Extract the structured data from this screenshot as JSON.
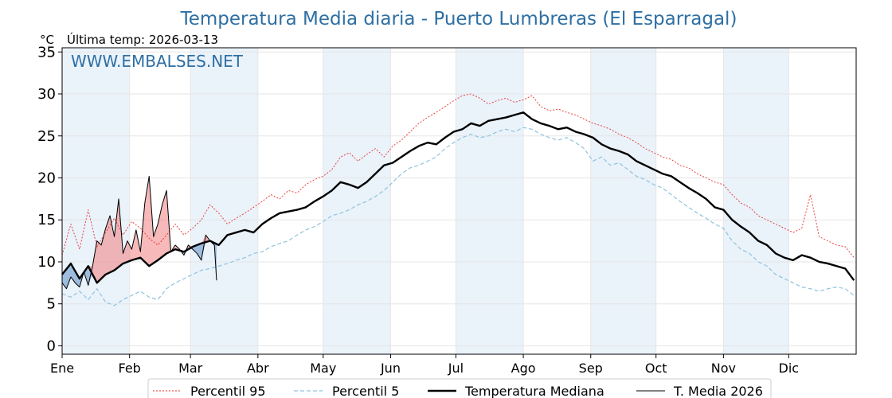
{
  "title": "Temperatura Media diaria - Puerto Lumbreras (El Esparragal)",
  "unit_label": "°C",
  "last_temp_label": "Última temp: 2026-03-13",
  "watermark": "WWW.EMBALSES.NET",
  "colors": {
    "title": "#2e6fa3",
    "p95": "#e8302a",
    "p5": "#8fc3dc",
    "median": "#000000",
    "current": "#000000",
    "fill_above": "#f08080",
    "fill_below": "#5f8fc7",
    "band": "#eaf2fa"
  },
  "chart_data": {
    "type": "line",
    "title": "Temperatura Media diaria - Puerto Lumbreras (El Esparragal)",
    "ylabel": "°C",
    "ylim": [
      -1,
      35.5
    ],
    "xlim": [
      1,
      366
    ],
    "yticks": [
      0,
      5,
      10,
      15,
      20,
      25,
      30,
      35
    ],
    "months": [
      {
        "label": "Ene",
        "day": 1
      },
      {
        "label": "Feb",
        "day": 32
      },
      {
        "label": "Mar",
        "day": 60
      },
      {
        "label": "Abr",
        "day": 91
      },
      {
        "label": "May",
        "day": 121
      },
      {
        "label": "Jun",
        "day": 152
      },
      {
        "label": "Jul",
        "day": 182
      },
      {
        "label": "Ago",
        "day": 213
      },
      {
        "label": "Sep",
        "day": 244
      },
      {
        "label": "Oct",
        "day": 274
      },
      {
        "label": "Nov",
        "day": 305
      },
      {
        "label": "Dic",
        "day": 335
      }
    ],
    "shaded_months": [
      [
        1,
        32
      ],
      [
        60,
        91
      ],
      [
        121,
        152
      ],
      [
        182,
        213
      ],
      [
        244,
        274
      ],
      [
        305,
        335
      ]
    ],
    "grid": true,
    "legend_position": "bottom",
    "series": [
      {
        "key": "p95",
        "name": "Percentil 95",
        "x": [
          1,
          5,
          9,
          13,
          17,
          21,
          25,
          29,
          33,
          37,
          41,
          45,
          49,
          53,
          57,
          61,
          65,
          69,
          73,
          77,
          81,
          85,
          89,
          93,
          97,
          101,
          105,
          109,
          113,
          117,
          121,
          125,
          129,
          133,
          137,
          141,
          145,
          149,
          153,
          157,
          161,
          165,
          169,
          173,
          177,
          181,
          185,
          189,
          193,
          197,
          201,
          205,
          209,
          213,
          217,
          221,
          225,
          229,
          233,
          237,
          241,
          245,
          249,
          253,
          257,
          261,
          265,
          269,
          273,
          277,
          281,
          285,
          289,
          293,
          297,
          301,
          305,
          309,
          313,
          317,
          321,
          325,
          329,
          333,
          337,
          341,
          345,
          349,
          353,
          357,
          361,
          365
        ],
        "y": [
          10.8,
          14.5,
          11.5,
          16.2,
          11.8,
          13.5,
          15.2,
          13.2,
          14.8,
          14.0,
          12.8,
          12.0,
          13.2,
          14.5,
          13.2,
          14.0,
          15.0,
          16.8,
          15.8,
          14.5,
          15.2,
          15.8,
          16.5,
          17.2,
          18.0,
          17.5,
          18.5,
          18.2,
          19.2,
          19.8,
          20.2,
          21.0,
          22.5,
          23.0,
          22.0,
          22.8,
          23.5,
          22.5,
          23.8,
          24.5,
          25.5,
          26.5,
          27.2,
          27.8,
          28.5,
          29.2,
          29.8,
          30.0,
          29.5,
          28.8,
          29.2,
          29.5,
          29.0,
          29.3,
          29.8,
          28.5,
          28.0,
          28.2,
          27.8,
          27.5,
          27.0,
          26.5,
          26.2,
          25.8,
          25.2,
          24.8,
          24.2,
          23.5,
          23.0,
          22.5,
          22.2,
          21.5,
          21.2,
          20.5,
          20.0,
          19.5,
          19.2,
          18.0,
          17.0,
          16.5,
          15.5,
          15.0,
          14.5,
          14.0,
          13.5,
          14.0,
          18.0,
          13.0,
          12.5,
          12.0,
          11.8,
          10.5
        ]
      },
      {
        "key": "p5",
        "name": "Percentil 5",
        "x": [
          1,
          5,
          9,
          13,
          17,
          21,
          25,
          29,
          33,
          37,
          41,
          45,
          49,
          53,
          57,
          61,
          65,
          69,
          73,
          77,
          81,
          85,
          89,
          93,
          97,
          101,
          105,
          109,
          113,
          117,
          121,
          125,
          129,
          133,
          137,
          141,
          145,
          149,
          153,
          157,
          161,
          165,
          169,
          173,
          177,
          181,
          185,
          189,
          193,
          197,
          201,
          205,
          209,
          213,
          217,
          221,
          225,
          229,
          233,
          237,
          241,
          245,
          249,
          253,
          257,
          261,
          265,
          269,
          273,
          277,
          281,
          285,
          289,
          293,
          297,
          301,
          305,
          309,
          313,
          317,
          321,
          325,
          329,
          333,
          337,
          341,
          345,
          349,
          353,
          357,
          361,
          365
        ],
        "y": [
          6.2,
          5.8,
          6.5,
          5.5,
          6.8,
          5.2,
          4.8,
          5.5,
          6.0,
          6.5,
          5.8,
          5.5,
          6.8,
          7.5,
          8.0,
          8.5,
          9.0,
          9.2,
          9.5,
          9.8,
          10.2,
          10.5,
          11.0,
          11.2,
          11.8,
          12.2,
          12.5,
          13.2,
          13.8,
          14.2,
          14.8,
          15.5,
          15.8,
          16.2,
          16.8,
          17.2,
          17.8,
          18.5,
          19.5,
          20.5,
          21.2,
          21.5,
          22.0,
          22.5,
          23.5,
          24.2,
          24.8,
          25.2,
          24.8,
          25.0,
          25.5,
          25.8,
          25.5,
          26.0,
          25.8,
          25.2,
          24.8,
          24.5,
          24.8,
          24.2,
          23.5,
          22.0,
          22.5,
          21.5,
          21.8,
          21.0,
          20.2,
          19.8,
          19.2,
          18.8,
          18.0,
          17.2,
          16.5,
          15.8,
          15.2,
          14.5,
          14.0,
          12.5,
          11.5,
          11.0,
          10.0,
          9.5,
          8.5,
          8.0,
          7.5,
          7.0,
          6.8,
          6.5,
          6.8,
          7.0,
          6.8,
          6.0
        ]
      },
      {
        "key": "median",
        "name": "Temperatura Mediana",
        "x": [
          1,
          5,
          9,
          13,
          17,
          21,
          25,
          29,
          33,
          37,
          41,
          45,
          49,
          53,
          57,
          61,
          65,
          69,
          73,
          77,
          81,
          85,
          89,
          93,
          97,
          101,
          105,
          109,
          113,
          117,
          121,
          125,
          129,
          133,
          137,
          141,
          145,
          149,
          153,
          157,
          161,
          165,
          169,
          173,
          177,
          181,
          185,
          189,
          193,
          197,
          201,
          205,
          209,
          213,
          217,
          221,
          225,
          229,
          233,
          237,
          241,
          245,
          249,
          253,
          257,
          261,
          265,
          269,
          273,
          277,
          281,
          285,
          289,
          293,
          297,
          301,
          305,
          309,
          313,
          317,
          321,
          325,
          329,
          333,
          337,
          341,
          345,
          349,
          353,
          357,
          361,
          365
        ],
        "y": [
          8.5,
          9.8,
          8.0,
          9.5,
          7.5,
          8.5,
          9.0,
          9.8,
          10.2,
          10.5,
          9.5,
          10.2,
          11.0,
          11.5,
          11.2,
          11.8,
          12.2,
          12.5,
          12.0,
          13.2,
          13.5,
          13.8,
          13.5,
          14.5,
          15.2,
          15.8,
          16.0,
          16.2,
          16.5,
          17.2,
          17.8,
          18.5,
          19.5,
          19.2,
          18.8,
          19.5,
          20.5,
          21.5,
          21.8,
          22.5,
          23.2,
          23.8,
          24.2,
          24.0,
          24.8,
          25.5,
          25.8,
          26.5,
          26.2,
          26.8,
          27.0,
          27.2,
          27.5,
          27.8,
          27.0,
          26.5,
          26.2,
          25.8,
          26.0,
          25.5,
          25.2,
          24.8,
          24.0,
          23.5,
          23.2,
          22.8,
          22.0,
          21.5,
          21.0,
          20.5,
          20.2,
          19.5,
          18.8,
          18.2,
          17.5,
          16.5,
          16.2,
          15.0,
          14.2,
          13.5,
          12.5,
          12.0,
          11.0,
          10.5,
          10.2,
          10.8,
          10.5,
          10.0,
          9.8,
          9.5,
          9.2,
          7.8
        ]
      },
      {
        "key": "current",
        "name": "T. Media 2026",
        "x": [
          1,
          3,
          5,
          7,
          9,
          11,
          13,
          15,
          17,
          19,
          21,
          23,
          25,
          27,
          29,
          31,
          33,
          35,
          37,
          39,
          41,
          43,
          45,
          47,
          49,
          51,
          53,
          55,
          57,
          59,
          61,
          63,
          65,
          67,
          69,
          71,
          72
        ],
        "y": [
          7.5,
          6.8,
          8.2,
          7.5,
          7.0,
          8.8,
          7.2,
          9.5,
          12.5,
          12.0,
          14.0,
          15.5,
          13.0,
          17.5,
          11.0,
          12.5,
          11.5,
          13.8,
          11.2,
          17.0,
          20.2,
          13.0,
          14.5,
          16.8,
          18.5,
          11.2,
          12.0,
          11.5,
          10.8,
          12.0,
          11.5,
          11.0,
          10.2,
          13.2,
          12.5,
          12.0,
          7.8
        ]
      }
    ]
  },
  "legend": {
    "p95": "Percentil 95",
    "p5": "Percentil 5",
    "median": "Temperatura Mediana",
    "current": "T. Media 2026"
  }
}
